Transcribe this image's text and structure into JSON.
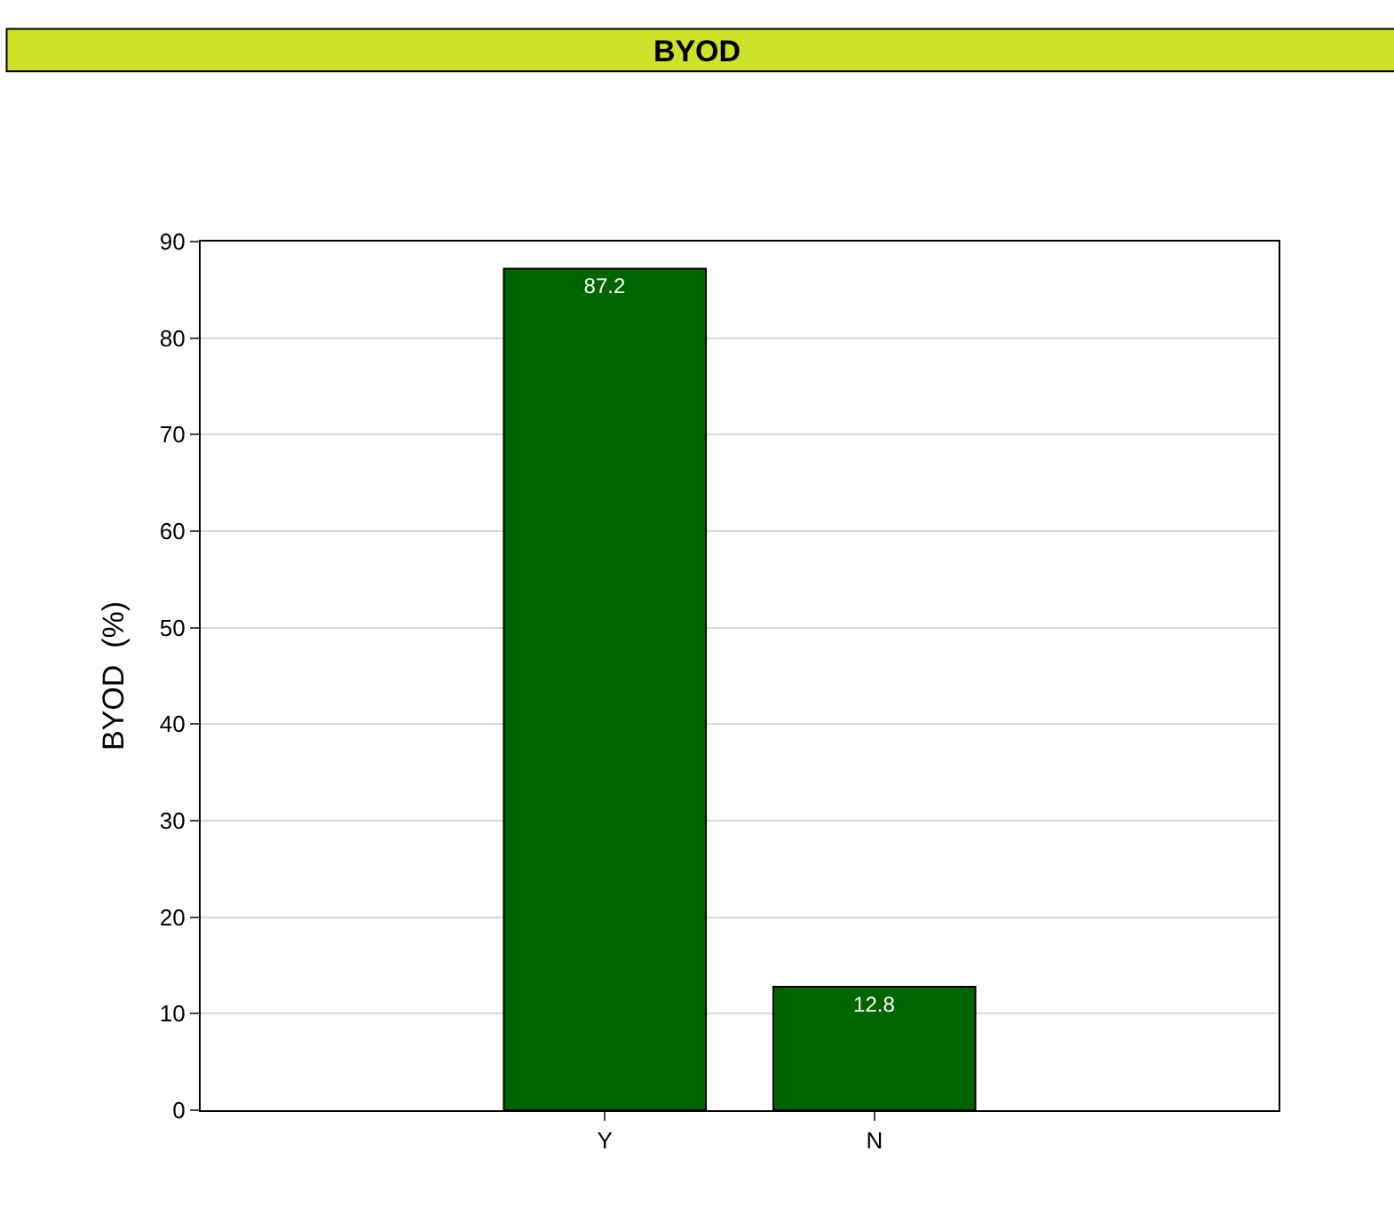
{
  "chart_data": {
    "type": "bar",
    "title": "BYOD",
    "ylabel": "BYOD  (%)",
    "categories": [
      "Y",
      "N"
    ],
    "series": [
      {
        "color": "#006400",
        "values": [
          87.2,
          12.8
        ]
      }
    ],
    "ylim": [
      0,
      90
    ],
    "yticks": [
      0,
      10,
      20,
      30,
      40,
      50,
      60,
      70,
      80,
      90
    ],
    "grid": "y",
    "data_labels": true
  }
}
